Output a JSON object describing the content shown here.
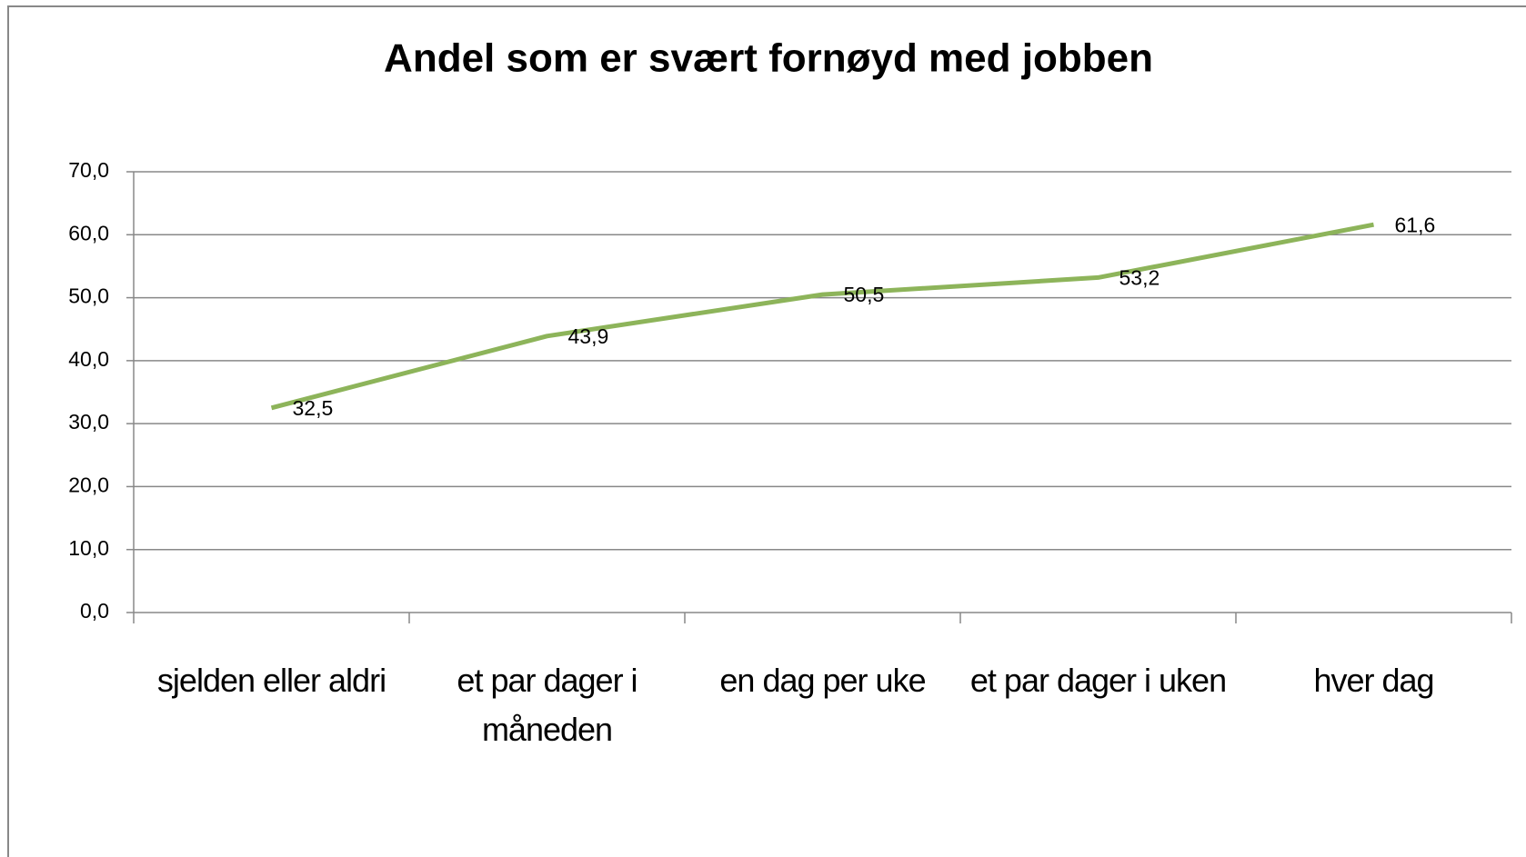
{
  "chart_data": {
    "type": "line",
    "title": "Andel som er svært fornøyd med jobben",
    "categories": [
      "sjelden eller aldri",
      "et par dager i måneden",
      "en dag per uke",
      "et par dager i uken",
      "hver dag"
    ],
    "values": [
      32.5,
      43.9,
      50.5,
      53.2,
      61.6
    ],
    "value_labels": [
      "32,5",
      "43,9",
      "50,5",
      "53,2",
      "61,6"
    ],
    "color": "#8db45a",
    "ylim": [
      0,
      70
    ],
    "yticks": [
      {
        "value": 0,
        "label": "0,0"
      },
      {
        "value": 10,
        "label": "10,0"
      },
      {
        "value": 20,
        "label": "20,0"
      },
      {
        "value": 30,
        "label": "30,0"
      },
      {
        "value": 40,
        "label": "40,0"
      },
      {
        "value": 50,
        "label": "50,0"
      },
      {
        "value": 60,
        "label": "60,0"
      },
      {
        "value": 70,
        "label": "70,0"
      }
    ],
    "grid": true
  }
}
